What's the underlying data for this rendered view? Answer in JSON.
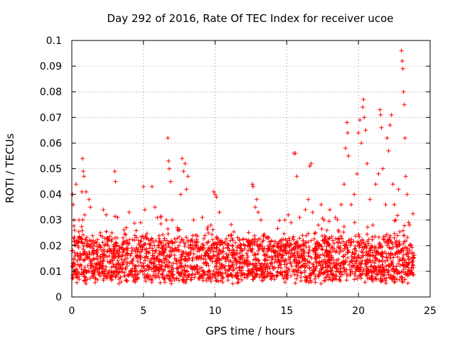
{
  "chart_data": {
    "type": "scatter",
    "title": "Day 292 of 2016, Rate Of TEC Index for receiver ucoe",
    "xlabel": "GPS time / hours",
    "ylabel": "ROTI / TECUs",
    "xlim": [
      0,
      25
    ],
    "ylim": [
      0,
      0.1
    ],
    "x_ticks": [
      0,
      5,
      10,
      15,
      20,
      25
    ],
    "x_tick_labels": [
      "0",
      "5",
      "10",
      "15",
      "20",
      "25"
    ],
    "y_ticks": [
      0,
      0.01,
      0.02,
      0.03,
      0.04,
      0.05,
      0.06,
      0.07,
      0.08,
      0.09,
      0.1
    ],
    "y_tick_labels": [
      "0",
      "0.01",
      "0.02",
      "0.03",
      "0.04",
      "0.05",
      "0.06",
      "0.07",
      "0.08",
      "0.09",
      "0.1"
    ],
    "grid": true,
    "marker": "+",
    "series": [
      {
        "name": "ROTI",
        "color": "#ff0000",
        "points": [
          [
            0.0,
            0.018
          ],
          [
            0.05,
            0.04
          ],
          [
            0.1,
            0.036
          ],
          [
            0.15,
            0.013
          ],
          [
            0.2,
            0.026
          ],
          [
            0.3,
            0.044
          ],
          [
            0.35,
            0.021
          ],
          [
            0.4,
            0.01
          ],
          [
            0.5,
            0.03
          ],
          [
            0.6,
            0.015
          ],
          [
            0.7,
            0.041
          ],
          [
            0.75,
            0.054
          ],
          [
            0.8,
            0.049
          ],
          [
            0.85,
            0.047
          ],
          [
            0.9,
            0.032
          ],
          [
            1.0,
            0.041
          ],
          [
            1.1,
            0.02
          ],
          [
            1.2,
            0.038
          ],
          [
            1.3,
            0.035
          ],
          [
            1.4,
            0.012
          ],
          [
            1.5,
            0.022
          ],
          [
            1.7,
            0.018
          ],
          [
            1.9,
            0.011
          ],
          [
            2.0,
            0.024
          ],
          [
            2.2,
            0.034
          ],
          [
            2.4,
            0.032
          ],
          [
            2.6,
            0.016
          ],
          [
            2.8,
            0.025
          ],
          [
            3.0,
            0.049
          ],
          [
            3.05,
            0.045
          ],
          [
            3.2,
            0.031
          ],
          [
            3.4,
            0.012
          ],
          [
            3.6,
            0.021
          ],
          [
            3.8,
            0.027
          ],
          [
            4.0,
            0.033
          ],
          [
            4.2,
            0.018
          ],
          [
            4.4,
            0.024
          ],
          [
            4.6,
            0.014
          ],
          [
            4.8,
            0.029
          ],
          [
            5.0,
            0.043
          ],
          [
            5.1,
            0.034
          ],
          [
            5.3,
            0.012
          ],
          [
            5.5,
            0.022
          ],
          [
            5.6,
            0.043
          ],
          [
            5.8,
            0.035
          ],
          [
            6.0,
            0.016
          ],
          [
            6.2,
            0.031
          ],
          [
            6.4,
            0.02
          ],
          [
            6.6,
            0.03
          ],
          [
            6.7,
            0.062
          ],
          [
            6.75,
            0.053
          ],
          [
            6.8,
            0.05
          ],
          [
            6.9,
            0.045
          ],
          [
            7.0,
            0.03
          ],
          [
            7.2,
            0.019
          ],
          [
            7.4,
            0.026
          ],
          [
            7.6,
            0.04
          ],
          [
            7.7,
            0.054
          ],
          [
            7.8,
            0.049
          ],
          [
            7.9,
            0.052
          ],
          [
            8.0,
            0.042
          ],
          [
            8.1,
            0.047
          ],
          [
            8.3,
            0.022
          ],
          [
            8.5,
            0.03
          ],
          [
            8.7,
            0.012
          ],
          [
            8.9,
            0.018
          ],
          [
            9.1,
            0.031
          ],
          [
            9.3,
            0.024
          ],
          [
            9.5,
            0.017
          ],
          [
            9.7,
            0.028
          ],
          [
            9.9,
            0.041
          ],
          [
            10.0,
            0.04
          ],
          [
            10.1,
            0.039
          ],
          [
            10.3,
            0.033
          ],
          [
            10.5,
            0.021
          ],
          [
            10.7,
            0.015
          ],
          [
            10.9,
            0.019
          ],
          [
            11.1,
            0.024
          ],
          [
            11.3,
            0.018
          ],
          [
            11.5,
            0.014
          ],
          [
            11.7,
            0.022
          ],
          [
            11.9,
            0.016
          ],
          [
            12.1,
            0.02
          ],
          [
            12.3,
            0.014
          ],
          [
            12.5,
            0.018
          ],
          [
            12.6,
            0.044
          ],
          [
            12.65,
            0.043
          ],
          [
            12.8,
            0.035
          ],
          [
            12.9,
            0.038
          ],
          [
            13.0,
            0.033
          ],
          [
            13.2,
            0.03
          ],
          [
            13.4,
            0.024
          ],
          [
            13.6,
            0.016
          ],
          [
            13.8,
            0.019
          ],
          [
            14.0,
            0.012
          ],
          [
            14.2,
            0.016
          ],
          [
            14.4,
            0.014
          ],
          [
            14.6,
            0.02
          ],
          [
            14.8,
            0.018
          ],
          [
            15.0,
            0.022
          ],
          [
            15.1,
            0.032
          ],
          [
            15.3,
            0.029
          ],
          [
            15.5,
            0.056
          ],
          [
            15.6,
            0.056
          ],
          [
            15.7,
            0.047
          ],
          [
            15.9,
            0.031
          ],
          [
            16.1,
            0.024
          ],
          [
            16.3,
            0.034
          ],
          [
            16.5,
            0.038
          ],
          [
            16.6,
            0.051
          ],
          [
            16.7,
            0.052
          ],
          [
            16.8,
            0.033
          ],
          [
            17.0,
            0.025
          ],
          [
            17.2,
            0.028
          ],
          [
            17.4,
            0.036
          ],
          [
            17.6,
            0.03
          ],
          [
            17.8,
            0.026
          ],
          [
            18.0,
            0.034
          ],
          [
            18.2,
            0.022
          ],
          [
            18.4,
            0.031
          ],
          [
            18.6,
            0.026
          ],
          [
            18.8,
            0.036
          ],
          [
            19.0,
            0.044
          ],
          [
            19.1,
            0.058
          ],
          [
            19.2,
            0.068
          ],
          [
            19.25,
            0.064
          ],
          [
            19.3,
            0.055
          ],
          [
            19.5,
            0.036
          ],
          [
            19.7,
            0.04
          ],
          [
            19.9,
            0.048
          ],
          [
            20.0,
            0.064
          ],
          [
            20.1,
            0.069
          ],
          [
            20.2,
            0.06
          ],
          [
            20.3,
            0.074
          ],
          [
            20.35,
            0.077
          ],
          [
            20.4,
            0.07
          ],
          [
            20.5,
            0.065
          ],
          [
            20.6,
            0.052
          ],
          [
            20.8,
            0.038
          ],
          [
            21.0,
            0.028
          ],
          [
            21.2,
            0.044
          ],
          [
            21.4,
            0.048
          ],
          [
            21.5,
            0.073
          ],
          [
            21.55,
            0.071
          ],
          [
            21.6,
            0.066
          ],
          [
            21.7,
            0.05
          ],
          [
            21.9,
            0.036
          ],
          [
            22.0,
            0.062
          ],
          [
            22.1,
            0.057
          ],
          [
            22.2,
            0.067
          ],
          [
            22.3,
            0.071
          ],
          [
            22.4,
            0.044
          ],
          [
            22.5,
            0.036
          ],
          [
            22.6,
            0.03
          ],
          [
            22.8,
            0.042
          ],
          [
            23.0,
            0.096
          ],
          [
            23.05,
            0.092
          ],
          [
            23.1,
            0.089
          ],
          [
            23.15,
            0.08
          ],
          [
            23.2,
            0.075
          ],
          [
            23.25,
            0.062
          ],
          [
            23.3,
            0.047
          ],
          [
            23.4,
            0.04
          ],
          [
            23.5,
            0.029
          ],
          [
            23.6,
            0.02
          ],
          [
            23.7,
            0.017
          ],
          [
            23.8,
            0.014
          ]
        ]
      }
    ]
  }
}
